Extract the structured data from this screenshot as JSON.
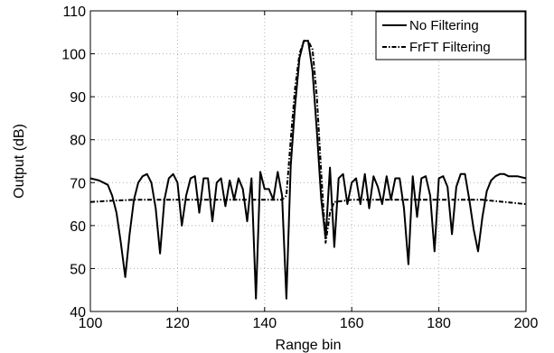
{
  "chart_data": {
    "type": "line",
    "title": "",
    "xlabel": "Range bin",
    "ylabel": "Output (dB)",
    "xlim": [
      100,
      200
    ],
    "ylim": [
      40,
      110
    ],
    "xticks": [
      100,
      120,
      140,
      160,
      180,
      200
    ],
    "yticks": [
      40,
      50,
      60,
      70,
      80,
      90,
      100,
      110
    ],
    "grid": true,
    "legend_position": "top-right",
    "series": [
      {
        "name": "No Filtering",
        "line_style": "solid",
        "color": "#000000",
        "x": [
          100,
          102,
          104,
          105,
          106,
          107,
          108,
          109,
          110,
          111,
          112,
          113,
          114,
          115,
          116,
          117,
          118,
          119,
          120,
          121,
          122,
          123,
          124,
          125,
          126,
          127,
          128,
          129,
          130,
          131,
          132,
          133,
          134,
          135,
          136,
          137,
          138,
          139,
          140,
          141,
          142,
          143,
          144,
          145,
          146,
          147,
          148,
          149,
          150,
          151,
          152,
          153,
          154,
          155,
          156,
          157,
          158,
          159,
          160,
          161,
          162,
          163,
          164,
          165,
          166,
          167,
          168,
          169,
          170,
          171,
          172,
          173,
          174,
          175,
          176,
          177,
          178,
          179,
          180,
          181,
          182,
          183,
          184,
          185,
          186,
          187,
          188,
          189,
          190,
          191,
          192,
          193,
          194,
          195,
          196,
          198,
          200
        ],
        "y": [
          71,
          70.5,
          69.5,
          67,
          63,
          56,
          48,
          58,
          66,
          70,
          71.5,
          72,
          70,
          64,
          53.5,
          66,
          71,
          72,
          70,
          60,
          67,
          71,
          71.5,
          63,
          71,
          71,
          61,
          70,
          71,
          64.5,
          70.5,
          66,
          71,
          68.5,
          61,
          71,
          43,
          72.5,
          68.5,
          68.5,
          66,
          72.5,
          67,
          43,
          74,
          88,
          99,
          103,
          103,
          96,
          82,
          66,
          57,
          73.5,
          55,
          71,
          72,
          65,
          70,
          71,
          65,
          72,
          64,
          71.5,
          69,
          65,
          71.5,
          66,
          71,
          71,
          64,
          51,
          71.5,
          62,
          71,
          71.5,
          67,
          54,
          71,
          71.5,
          69,
          58,
          69,
          72,
          72,
          66,
          59,
          54,
          62,
          68,
          70.5,
          71.5,
          72,
          72,
          71.5,
          71.5,
          71
        ]
      },
      {
        "name": "FrFT Filtering",
        "line_style": "dash-dot",
        "color": "#000000",
        "x": [
          100,
          105,
          110,
          115,
          120,
          125,
          130,
          135,
          138,
          140,
          142,
          144,
          145,
          146,
          147,
          148,
          149,
          150,
          151,
          152,
          153,
          154,
          155,
          156,
          160,
          165,
          170,
          175,
          180,
          185,
          190,
          195,
          200
        ],
        "y": [
          65.5,
          65.8,
          66,
          66,
          66,
          66,
          66,
          66,
          66,
          66,
          66,
          66,
          67,
          80,
          92,
          100,
          103,
          103,
          101,
          90,
          72,
          56,
          63,
          65.5,
          66,
          66,
          66,
          66,
          66,
          66,
          66,
          65.5,
          65
        ]
      }
    ]
  }
}
